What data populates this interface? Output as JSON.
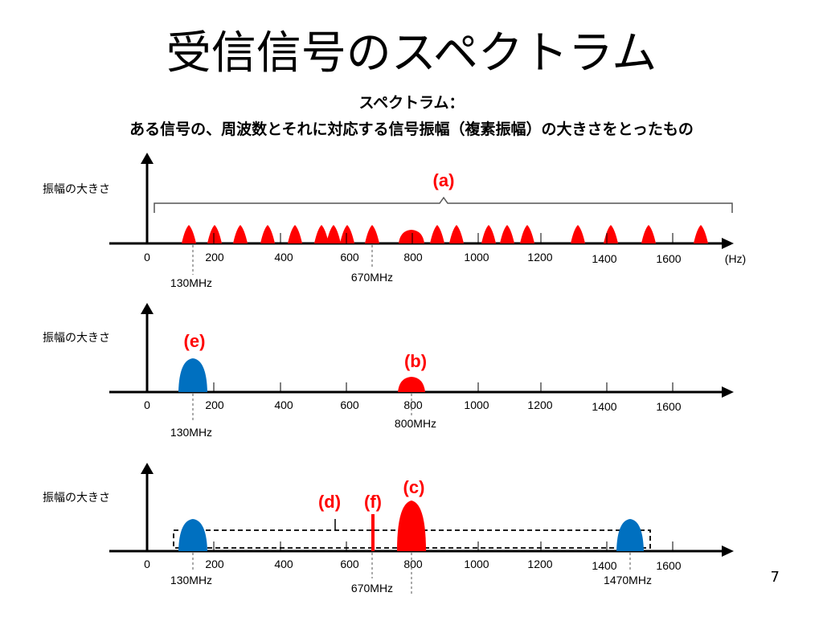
{
  "slide": {
    "title": "受信信号のスペクトラム",
    "subtitle_line1": "スペクトラム：",
    "subtitle_line2": "ある信号の、周波数とそれに対応する信号振幅（複素振幅）の大きさをとったもの",
    "page_number": "7"
  },
  "axis": {
    "ylabel": "振幅の大きさ",
    "unit": "(Hz)",
    "ticks": [
      "0",
      "200",
      "400",
      "600",
      "800",
      "1000",
      "1200",
      "1400",
      "1600"
    ]
  },
  "panels": [
    {
      "callouts": [
        "(a)"
      ],
      "freq_labels": [
        "130MHz",
        "670MHz"
      ],
      "colors": {
        "signal": "#ff0000"
      }
    },
    {
      "callouts": [
        "(e)",
        "(b)"
      ],
      "freq_labels": [
        "130MHz",
        "800MHz"
      ],
      "colors": {
        "signal_red": "#ff0000",
        "signal_blue": "#0070c0"
      }
    },
    {
      "callouts": [
        "(d)",
        "(f)",
        "(c)"
      ],
      "freq_labels": [
        "130MHz",
        "670MHz",
        "1470MHz"
      ],
      "colors": {
        "signal_red": "#ff0000",
        "signal_blue": "#0070c0"
      }
    }
  ]
}
